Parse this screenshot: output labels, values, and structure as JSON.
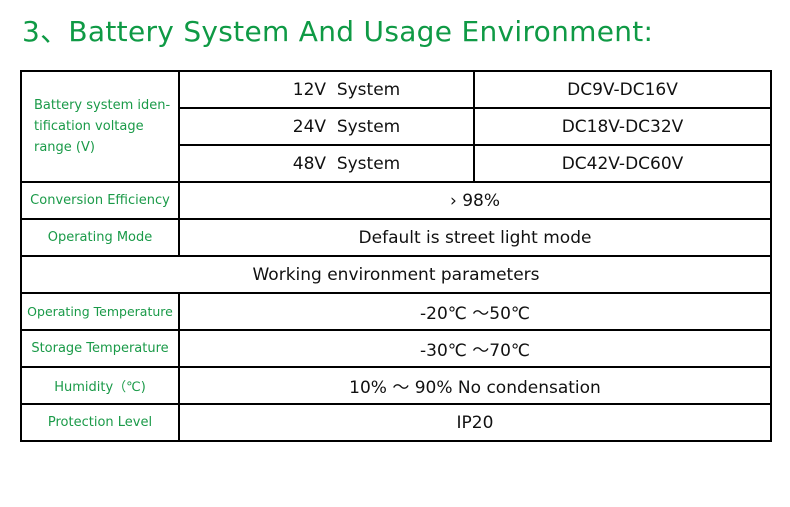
{
  "title": "3、Battery System And Usage Environment:",
  "battery": {
    "label": "Battery system iden-tification voltage range (V)",
    "rows": [
      {
        "system": "12V  System",
        "range": "DC9V-DC16V"
      },
      {
        "system": "24V  System",
        "range": "DC18V-DC32V"
      },
      {
        "system": "48V  System",
        "range": "DC42V-DC60V"
      }
    ]
  },
  "rows1": [
    {
      "label": "Conversion Efficiency",
      "value": "› 98%"
    },
    {
      "label": "Operating Mode",
      "value": "Default is street light mode"
    }
  ],
  "section": "Working environment parameters",
  "rows2": [
    {
      "label": "Operating Temperature",
      "value": "-20℃ ～50℃"
    },
    {
      "label": "Storage Temperature",
      "value": "-30℃ ～70℃"
    },
    {
      "label": "Humidity（℃)",
      "value": "10% ～ 90% No condensation"
    },
    {
      "label": "Protection Level",
      "value": "IP20"
    }
  ],
  "colors": {
    "title": "#0f9a45",
    "label": "#1a9a48"
  }
}
